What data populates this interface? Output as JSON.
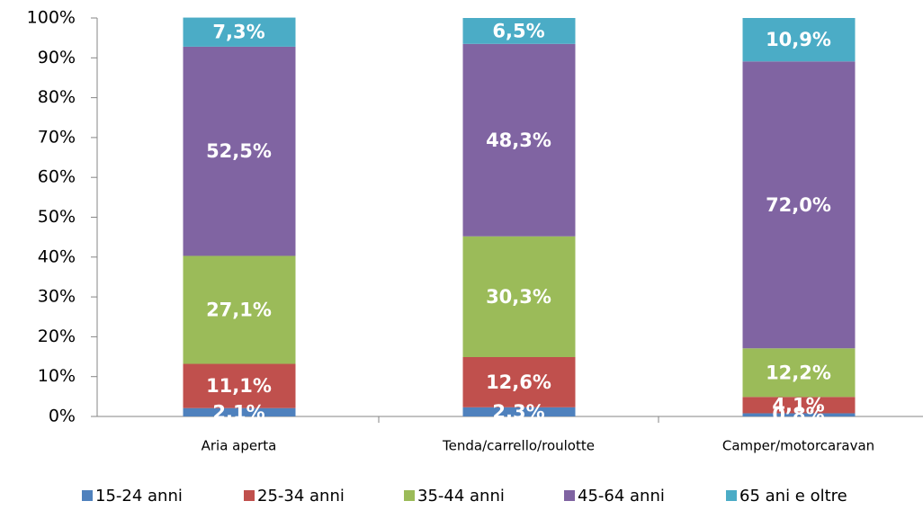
{
  "chart_data": {
    "type": "stacked_bar",
    "categories": [
      "Aria aperta",
      "Tenda/carrello/roulotte",
      "Camper/motorcaravan"
    ],
    "series": [
      {
        "name": "15-24 anni",
        "color": "#4f81bd",
        "values": [
          2.1,
          2.3,
          0.8
        ],
        "value_labels": [
          "2,1%",
          "2,3%",
          "0,8%"
        ]
      },
      {
        "name": "25-34 anni",
        "color": "#c0504d",
        "values": [
          11.1,
          12.6,
          4.1
        ],
        "value_labels": [
          "11,1%",
          "12,6%",
          "4,1%"
        ]
      },
      {
        "name": "35-44 anni",
        "color": "#9bbb59",
        "values": [
          27.1,
          30.3,
          12.2
        ],
        "value_labels": [
          "27,1%",
          "30,3%",
          "12,2%"
        ]
      },
      {
        "name": "45-64 anni",
        "color": "#8064a2",
        "values": [
          52.5,
          48.3,
          72.0
        ],
        "value_labels": [
          "52,5%",
          "48,3%",
          "72,0%"
        ]
      },
      {
        "name": "65 ani e oltre",
        "color": "#4bacc6",
        "values": [
          7.3,
          6.5,
          10.9
        ],
        "value_labels": [
          "7,3%",
          "6,5%",
          "10,9%"
        ]
      }
    ],
    "ylim": [
      0,
      100
    ],
    "yticks": [
      {
        "value": 0,
        "label": "0%"
      },
      {
        "value": 10,
        "label": "10%"
      },
      {
        "value": 20,
        "label": "20%"
      },
      {
        "value": 30,
        "label": "30%"
      },
      {
        "value": 40,
        "label": "40%"
      },
      {
        "value": 50,
        "label": "50%"
      },
      {
        "value": 60,
        "label": "60%"
      },
      {
        "value": 70,
        "label": "70%"
      },
      {
        "value": 80,
        "label": "80%"
      },
      {
        "value": 90,
        "label": "90%"
      },
      {
        "value": 100,
        "label": "100%"
      }
    ],
    "legend": "bottom"
  }
}
